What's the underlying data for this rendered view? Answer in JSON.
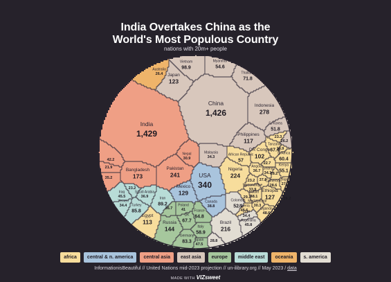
{
  "header": {
    "title_line1": "India Overtakes China as the",
    "title_line2": "World's Most Populous Country",
    "subtitle": "nations with 20m+ people"
  },
  "footer": {
    "source_text": "InformationisBeautiful // United Nations mid-2023 projection // un-ilibrary.org // May 2023 /",
    "data_link": "data",
    "made_with": "MADE WITH",
    "brand": "VIZsweet"
  },
  "legend": [
    {
      "label": "africa",
      "color": "#f7dd9c"
    },
    {
      "label": "central & n. america",
      "color": "#a9c4dd"
    },
    {
      "label": "central asia",
      "color": "#ef9f85"
    },
    {
      "label": "east asia",
      "color": "#d8c7bc"
    },
    {
      "label": "europe",
      "color": "#a6c79d"
    },
    {
      "label": "middle east",
      "color": "#b8dcd7"
    },
    {
      "label": "oceania",
      "color": "#efb46a"
    },
    {
      "label": "s. america",
      "color": "#e2ddd3"
    }
  ],
  "chart_data": {
    "type": "voronoi",
    "unit": "millions of people",
    "cells": [
      {
        "name": "India",
        "value": 1429,
        "region": "central asia"
      },
      {
        "name": "China",
        "value": 1426,
        "region": "east asia"
      },
      {
        "name": "Indonesia",
        "value": 278,
        "region": "east asia"
      },
      {
        "name": "Japan",
        "value": 123,
        "region": "east asia"
      },
      {
        "name": "Vietnam",
        "value": 98.9,
        "region": "east asia"
      },
      {
        "name": "Myanmar",
        "value": 54.6,
        "region": "east asia"
      },
      {
        "name": "Thailand",
        "value": 71.8,
        "region": "east asia"
      },
      {
        "name": "Philippines",
        "value": 117,
        "region": "east asia"
      },
      {
        "name": "S. Korea",
        "value": 51.8,
        "region": "east asia"
      },
      {
        "name": "Malaysia",
        "value": 34.3,
        "region": "east asia"
      },
      {
        "name": "",
        "value": 26.2,
        "region": "east asia"
      },
      {
        "name": "Australia",
        "value": 26.4,
        "region": "oceania"
      },
      {
        "name": "Pakistan",
        "value": 241,
        "region": "central asia"
      },
      {
        "name": "Bangladesh",
        "value": 173,
        "region": "central asia"
      },
      {
        "name": "Nepal",
        "value": 30.9,
        "region": "central asia"
      },
      {
        "name": "",
        "value": 42.2,
        "region": "central asia"
      },
      {
        "name": "",
        "value": 21.9,
        "region": "central asia"
      },
      {
        "name": "",
        "value": 35.2,
        "region": "central asia"
      },
      {
        "name": "USA",
        "value": 340,
        "region": "central & n. america"
      },
      {
        "name": "Mexico",
        "value": 129,
        "region": "central & n. america"
      },
      {
        "name": "Canada",
        "value": 38.8,
        "region": "central & n. america"
      },
      {
        "name": "Nigeria",
        "value": 224,
        "region": "africa"
      },
      {
        "name": "Ethiopia",
        "value": 127,
        "region": "africa"
      },
      {
        "name": "DR Congo",
        "value": 102,
        "region": "africa"
      },
      {
        "name": "Tanzania",
        "value": 67.4,
        "region": "africa"
      },
      {
        "name": "S. Africa",
        "value": 60.4,
        "region": "africa"
      },
      {
        "name": "Kenya",
        "value": 55.1,
        "region": "africa"
      },
      {
        "name": "African Republic",
        "value": 57,
        "region": "africa"
      },
      {
        "name": "Egypt",
        "value": 113,
        "region": "africa"
      },
      {
        "name": "Algeria",
        "value": 45.6,
        "region": "africa"
      },
      {
        "name": "Sudan",
        "value": 48.1,
        "region": "africa"
      },
      {
        "name": "Uganda",
        "value": 48.6,
        "region": "africa"
      },
      {
        "name": "Angola",
        "value": 36.7,
        "region": "africa"
      },
      {
        "name": "Ghana",
        "value": 34.1,
        "region": "africa"
      },
      {
        "name": "Mozambique",
        "value": 33.9,
        "region": "africa"
      },
      {
        "name": "Madagascar",
        "value": 30.3,
        "region": "africa"
      },
      {
        "name": "Cameroon",
        "value": 28.6,
        "region": "africa"
      },
      {
        "name": "Niger",
        "value": 27.2,
        "region": "africa"
      },
      {
        "name": "",
        "value": 37.8,
        "region": "africa"
      },
      {
        "name": "",
        "value": 29.1,
        "region": "africa"
      },
      {
        "name": "",
        "value": 26.2,
        "region": "africa"
      },
      {
        "name": "",
        "value": 23.3,
        "region": "africa"
      },
      {
        "name": "",
        "value": 28.2,
        "region": "africa"
      },
      {
        "name": "",
        "value": 20.9,
        "region": "africa"
      },
      {
        "name": "",
        "value": 23.2,
        "region": "africa"
      },
      {
        "name": "",
        "value": 22.7,
        "region": "africa"
      },
      {
        "name": "Iran",
        "value": 89.2,
        "region": "middle east"
      },
      {
        "name": "Turkey",
        "value": 85.8,
        "region": "middle east"
      },
      {
        "name": "Iraq",
        "value": 45.5,
        "region": "middle east"
      },
      {
        "name": "Saudi Arabia",
        "value": 36.9,
        "region": "middle east"
      },
      {
        "name": "Yemen",
        "value": 34.4,
        "region": "middle east"
      },
      {
        "name": "",
        "value": 23.2,
        "region": "middle east"
      },
      {
        "name": "Russia",
        "value": 144,
        "region": "europe"
      },
      {
        "name": "Germany",
        "value": 83.3,
        "region": "europe"
      },
      {
        "name": "UK",
        "value": 67.7,
        "region": "europe"
      },
      {
        "name": "France",
        "value": 64.8,
        "region": "europe"
      },
      {
        "name": "Italy",
        "value": 58.9,
        "region": "europe"
      },
      {
        "name": "Spain",
        "value": 47.5,
        "region": "europe"
      },
      {
        "name": "Poland",
        "value": 41,
        "region": "europe"
      },
      {
        "name": "",
        "value": 36.7,
        "region": "europe"
      },
      {
        "name": "Brazil",
        "value": 216,
        "region": "s. america"
      },
      {
        "name": "Colombia",
        "value": 52.1,
        "region": "s. america"
      },
      {
        "name": "Argentina",
        "value": 45.8,
        "region": "s. america"
      },
      {
        "name": "Peru",
        "value": 34.4,
        "region": "s. america"
      },
      {
        "name": "",
        "value": 28.8,
        "region": "s. america"
      }
    ]
  }
}
